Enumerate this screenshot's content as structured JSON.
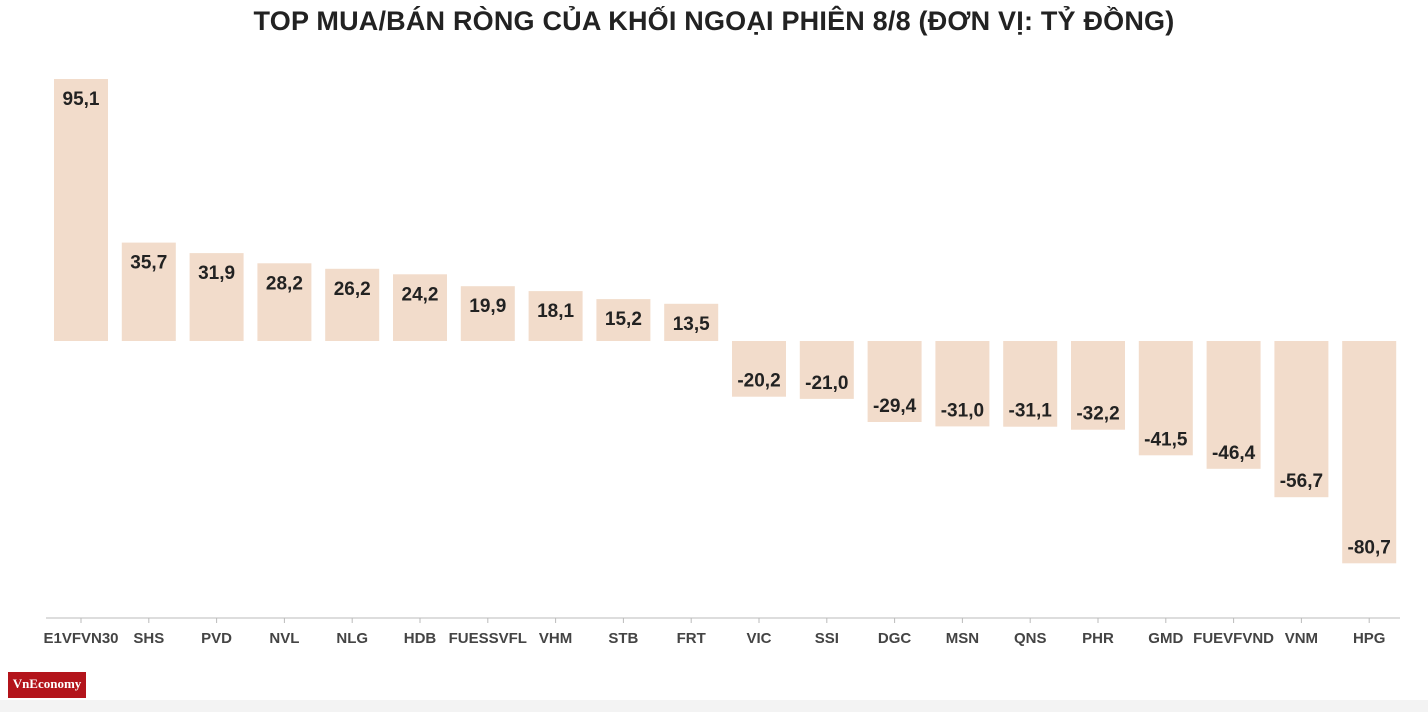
{
  "colors": {
    "bar": "#f2dccb",
    "text": "#222222",
    "logo_bg": "#b3141b"
  },
  "logo": {
    "name": "VnEconomy"
  },
  "chart_data": {
    "type": "bar",
    "title": "TOP MUA/BÁN RÒNG CỦA KHỐI NGOẠI PHIÊN 8/8 (ĐƠN VỊ: TỶ ĐỒNG)",
    "xlabel": "",
    "ylabel": "",
    "ylim": [
      -100,
      100
    ],
    "grid": false,
    "legend": "none",
    "categories": [
      "E1VFVN30",
      "SHS",
      "PVD",
      "NVL",
      "NLG",
      "HDB",
      "FUESSVFL",
      "VHM",
      "STB",
      "FRT",
      "VIC",
      "SSI",
      "DGC",
      "MSN",
      "QNS",
      "PHR",
      "GMD",
      "FUEVFVND",
      "VNM",
      "HPG"
    ],
    "values": [
      95.1,
      35.7,
      31.9,
      28.2,
      26.2,
      24.2,
      19.9,
      18.1,
      15.2,
      13.5,
      -20.2,
      -21.0,
      -29.4,
      -31.0,
      -31.1,
      -32.2,
      -41.5,
      -46.4,
      -56.7,
      -80.7
    ],
    "value_labels": [
      "95,1",
      "35,7",
      "31,9",
      "28,2",
      "26,2",
      "24,2",
      "19,9",
      "18,1",
      "15,2",
      "13,5",
      "-20,2",
      "-21,0",
      "-29,4",
      "-31,0",
      "-31,1",
      "-32,2",
      "-41,5",
      "-46,4",
      "-56,7",
      "-80,7"
    ]
  }
}
